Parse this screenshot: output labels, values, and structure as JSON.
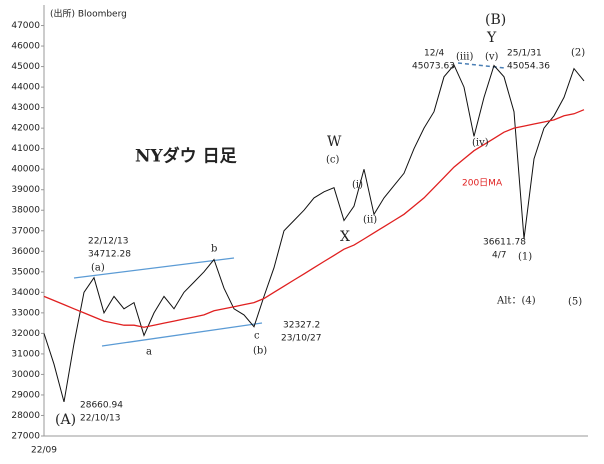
{
  "chart_data": {
    "type": "line",
    "title": "NYダウ 日足",
    "source": "(出所) Bloomberg",
    "categories": [
      "22/09",
      null,
      null,
      null,
      null,
      null,
      null,
      null,
      null,
      null,
      null,
      null,
      null,
      null,
      null,
      null,
      null,
      null,
      null,
      null,
      null,
      null,
      null,
      null,
      null,
      null,
      null,
      null,
      null,
      null,
      null,
      null,
      null,
      null,
      null,
      null,
      null,
      null,
      null,
      null,
      null,
      null,
      null,
      null,
      null,
      null,
      null,
      null,
      null,
      null,
      null,
      null,
      null,
      null,
      null
    ],
    "series": [
      {
        "color": "#111111",
        "values": [
          32000,
          30500,
          28660,
          31500,
          34000,
          34712,
          33000,
          33800,
          33200,
          33500,
          31900,
          33000,
          33800,
          33200,
          34000,
          34500,
          35000,
          35600,
          34200,
          33200,
          32900,
          32327,
          33800,
          35200,
          37000,
          37500,
          38000,
          38600,
          38900,
          39100,
          37500,
          38200,
          40000,
          37800,
          38600,
          39200,
          39800,
          41000,
          42000,
          42800,
          44500,
          45073,
          44000,
          41600,
          43500,
          45054,
          44500,
          42800,
          36612,
          40500,
          42000,
          42600,
          43500,
          44900,
          44300
        ]
      },
      {
        "name": "200日MA",
        "color": "#e02020",
        "values": [
          33800,
          33600,
          33400,
          33200,
          33000,
          32800,
          32600,
          32500,
          32400,
          32400,
          32300,
          32400,
          32500,
          32600,
          32700,
          32800,
          32900,
          33100,
          33200,
          33300,
          33400,
          33500,
          33700,
          34000,
          34300,
          34600,
          34900,
          35200,
          35500,
          35800,
          36100,
          36300,
          36600,
          36900,
          37200,
          37500,
          37800,
          38200,
          38600,
          39100,
          39600,
          40100,
          40500,
          40900,
          41200,
          41500,
          41800,
          42000,
          42100,
          42200,
          42300,
          42400,
          42600,
          42700,
          42900
        ]
      }
    ],
    "ylim": [
      27000,
      48000
    ],
    "yticks": [
      27000,
      28000,
      29000,
      30000,
      31000,
      32000,
      33000,
      34000,
      35000,
      36000,
      37000,
      38000,
      39000,
      40000,
      41000,
      42000,
      43000,
      44000,
      45000,
      46000,
      47000
    ],
    "annotations": [
      "(A)",
      "28660.94",
      "22/10/13",
      "(a)",
      "22/12/13",
      "34712.28",
      "a",
      "b",
      "c",
      "(b)",
      "32327.2",
      "23/10/27",
      "W",
      "(c)",
      "X",
      "(i)",
      "(ii)",
      "(iii)",
      "12/4",
      "45073.63",
      "(B)",
      "Y",
      "(v)",
      "25/1/31",
      "45054.36",
      "(iv)",
      "36611.78",
      "4/7",
      "(1)",
      "(2)",
      "Alt：(4)",
      "(5)"
    ]
  }
}
